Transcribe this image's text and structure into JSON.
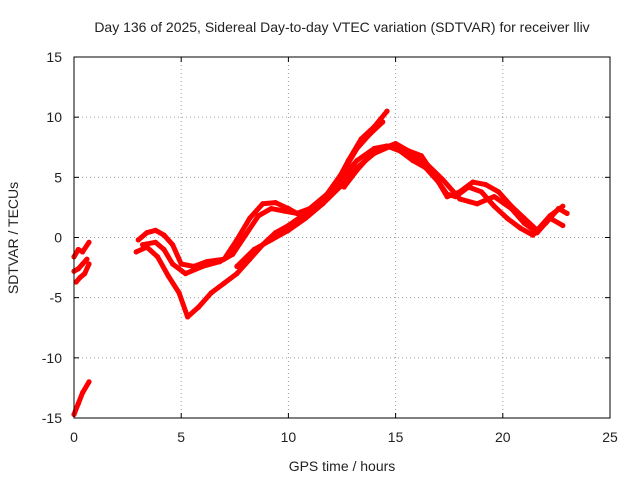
{
  "chart_data": {
    "type": "line",
    "title": "Day 136 of 2025, Sidereal Day-to-day VTEC variation (SDTVAR) for receiver lliv",
    "xlabel": "GPS time / hours",
    "ylabel": "SDTVAR / TECUs",
    "xlim": [
      0,
      25
    ],
    "ylim": [
      -15,
      15
    ],
    "xticks": [
      "0",
      "5",
      "10",
      "15",
      "20",
      "25"
    ],
    "yticks": [
      "-15",
      "-10",
      "-5",
      "0",
      "5",
      "10",
      "15"
    ],
    "grid": true,
    "color": "#ff0000",
    "series": [
      {
        "x": [
          0.0,
          0.2,
          0.4,
          0.7
        ],
        "y": [
          -14.7,
          -13.8,
          -12.9,
          -12.0
        ]
      },
      {
        "x": [
          0.0,
          0.2,
          0.4,
          0.7
        ],
        "y": [
          -1.6,
          -1.0,
          -1.2,
          -0.4
        ]
      },
      {
        "x": [
          0.0,
          0.2,
          0.4,
          0.6
        ],
        "y": [
          -2.8,
          -2.6,
          -2.2,
          -1.8
        ]
      },
      {
        "x": [
          0.1,
          0.3,
          0.5,
          0.7
        ],
        "y": [
          -3.7,
          -3.3,
          -3.0,
          -2.2
        ]
      },
      {
        "x": [
          3.0,
          3.4,
          3.8,
          4.2,
          4.6,
          5.0,
          5.6,
          6.2,
          7.0,
          7.6,
          8.2,
          8.8,
          9.4,
          10.0,
          10.6,
          11.4,
          12.2,
          12.8,
          13.4,
          14.0,
          14.6
        ],
        "y": [
          -0.2,
          0.4,
          0.6,
          0.2,
          -0.6,
          -2.2,
          -2.4,
          -2.0,
          -1.8,
          -0.2,
          1.6,
          2.8,
          2.9,
          2.4,
          1.8,
          2.8,
          4.4,
          6.4,
          8.2,
          9.2,
          10.5
        ]
      },
      {
        "x": [
          3.2,
          3.8,
          4.2,
          4.6,
          5.2,
          6.0,
          6.8,
          7.4,
          8.0,
          8.6,
          9.2,
          9.8,
          10.4,
          11.0,
          11.8,
          12.6,
          13.2,
          13.8,
          14.4
        ],
        "y": [
          -0.6,
          -0.4,
          -1.0,
          -2.2,
          -3.0,
          -2.4,
          -2.0,
          -1.4,
          0.2,
          1.8,
          2.4,
          2.2,
          2.0,
          2.4,
          3.6,
          5.6,
          7.4,
          8.6,
          9.6
        ]
      },
      {
        "x": [
          2.9,
          3.4,
          3.9,
          4.4,
          4.9,
          5.3,
          5.8,
          6.4,
          7.0,
          7.6,
          8.2,
          8.8,
          9.4,
          10.0,
          10.8,
          11.6,
          12.4,
          13.2,
          14.0,
          14.6,
          15.2,
          15.8,
          16.4,
          17.0,
          17.4,
          17.8,
          18.4,
          19.0,
          19.6,
          20.2,
          20.8,
          21.4,
          22.0,
          22.6,
          23.0
        ],
        "y": [
          -1.2,
          -0.8,
          -1.6,
          -3.2,
          -4.6,
          -6.6,
          -5.8,
          -4.6,
          -3.8,
          -3.0,
          -1.8,
          -0.6,
          0.4,
          1.0,
          2.0,
          3.0,
          4.8,
          6.4,
          7.4,
          7.6,
          7.2,
          6.4,
          5.8,
          4.6,
          3.6,
          3.4,
          4.2,
          3.8,
          2.6,
          1.6,
          0.8,
          0.2,
          1.2,
          2.4,
          2.0
        ]
      },
      {
        "x": [
          7.6,
          8.4,
          9.2,
          10.0,
          10.8,
          11.6,
          12.4,
          13.2,
          14.0,
          14.8,
          15.6,
          16.4,
          17.2,
          18.0,
          18.8,
          19.6,
          20.4,
          21.0,
          21.6,
          22.2,
          22.8
        ],
        "y": [
          -2.4,
          -1.0,
          -0.2,
          0.6,
          1.6,
          2.8,
          4.2,
          5.8,
          7.0,
          7.6,
          7.0,
          6.2,
          4.8,
          3.2,
          2.8,
          3.4,
          2.4,
          1.2,
          0.4,
          1.6,
          1.0
        ]
      },
      {
        "x": [
          12.6,
          13.2,
          13.8,
          14.4,
          15.0,
          15.6,
          16.2,
          16.8,
          17.4,
          18.0,
          18.6,
          19.2,
          19.8,
          20.4,
          21.0,
          21.6,
          22.2,
          22.8
        ],
        "y": [
          4.2,
          5.6,
          6.8,
          7.4,
          7.8,
          7.2,
          6.8,
          5.2,
          3.4,
          3.8,
          4.6,
          4.4,
          3.8,
          2.6,
          1.6,
          0.6,
          1.8,
          2.6
        ]
      }
    ]
  }
}
